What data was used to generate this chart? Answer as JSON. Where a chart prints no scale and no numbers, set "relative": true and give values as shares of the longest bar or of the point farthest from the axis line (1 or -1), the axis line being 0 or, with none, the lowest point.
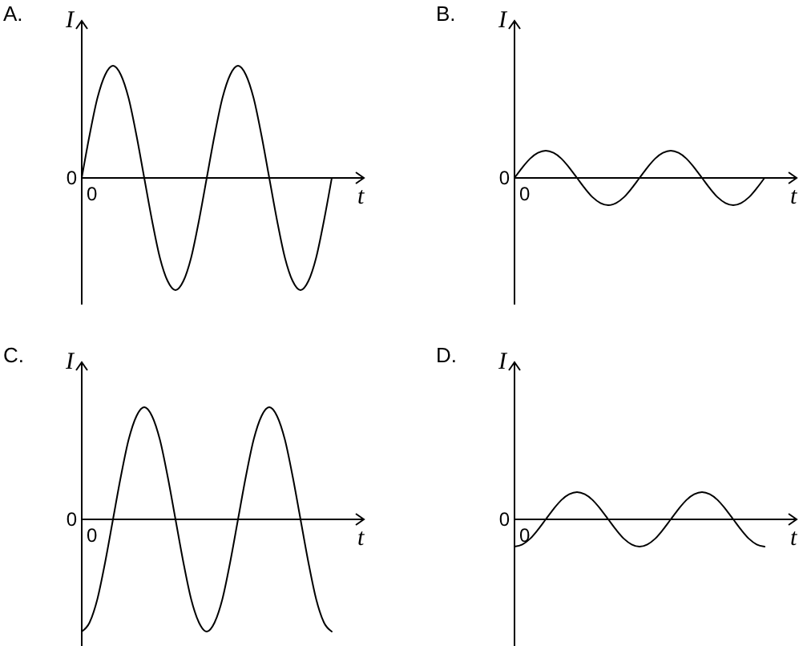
{
  "chart_data": [
    {
      "type": "line",
      "title": "A.",
      "xlabel": "t",
      "ylabel": "I",
      "relative": true,
      "categories": [
        null,
        null,
        null,
        null,
        null,
        null,
        null,
        null,
        null,
        null,
        null,
        null,
        null,
        null,
        null,
        null,
        null,
        null,
        null,
        null,
        null,
        null,
        null,
        null,
        null,
        null,
        null,
        null,
        null,
        null,
        null,
        null,
        null
      ],
      "series": [
        {
          "color": "#000000",
          "values": [
            0,
            0.38,
            0.71,
            0.92,
            1,
            0.92,
            0.71,
            0.38,
            0,
            -0.38,
            -0.71,
            -0.92,
            -1,
            -0.92,
            -0.71,
            -0.38,
            0,
            0.38,
            0.71,
            0.92,
            1,
            0.92,
            0.71,
            0.38,
            0,
            -0.38,
            -0.71,
            -0.92,
            -1,
            -0.92,
            -0.71,
            -0.38,
            0
          ]
        }
      ],
      "annotations": [
        "0",
        "0"
      ]
    },
    {
      "type": "line",
      "title": "B.",
      "xlabel": "t",
      "ylabel": "I",
      "relative": true,
      "categories": [
        null,
        null,
        null,
        null,
        null,
        null,
        null,
        null,
        null,
        null,
        null,
        null,
        null,
        null,
        null,
        null,
        null,
        null,
        null,
        null,
        null,
        null,
        null,
        null,
        null,
        null,
        null,
        null,
        null,
        null,
        null,
        null,
        null
      ],
      "series": [
        {
          "color": "#000000",
          "values": [
            0,
            0.38,
            0.71,
            0.92,
            1,
            0.92,
            0.71,
            0.38,
            0,
            -0.38,
            -0.71,
            -0.92,
            -1,
            -0.92,
            -0.71,
            -0.38,
            0,
            0.38,
            0.71,
            0.92,
            1,
            0.92,
            0.71,
            0.38,
            0,
            -0.38,
            -0.71,
            -0.92,
            -1,
            -0.92,
            -0.71,
            -0.38,
            0
          ]
        }
      ],
      "annotations": [
        "0",
        "0"
      ]
    },
    {
      "type": "line",
      "title": "C.",
      "xlabel": "t",
      "ylabel": "I",
      "relative": true,
      "categories": [
        null,
        null,
        null,
        null,
        null,
        null,
        null,
        null,
        null,
        null,
        null,
        null,
        null,
        null,
        null,
        null,
        null,
        null,
        null,
        null,
        null,
        null,
        null,
        null,
        null,
        null,
        null,
        null,
        null,
        null,
        null,
        null,
        null
      ],
      "series": [
        {
          "color": "#000000",
          "values": [
            -1,
            -0.92,
            -0.71,
            -0.38,
            0,
            0.38,
            0.71,
            0.92,
            1,
            0.92,
            0.71,
            0.38,
            0,
            -0.38,
            -0.71,
            -0.92,
            -1,
            -0.92,
            -0.71,
            -0.38,
            0,
            0.38,
            0.71,
            0.92,
            1,
            0.92,
            0.71,
            0.38,
            0,
            -0.38,
            -0.71,
            -0.92,
            -1
          ]
        }
      ],
      "annotations": [
        "0",
        "0"
      ]
    },
    {
      "type": "line",
      "title": "D.",
      "xlabel": "t",
      "ylabel": "I",
      "relative": true,
      "categories": [
        null,
        null,
        null,
        null,
        null,
        null,
        null,
        null,
        null,
        null,
        null,
        null,
        null,
        null,
        null,
        null,
        null,
        null,
        null,
        null,
        null,
        null,
        null,
        null,
        null,
        null,
        null,
        null,
        null,
        null,
        null,
        null,
        null
      ],
      "series": [
        {
          "color": "#000000",
          "values": [
            -1,
            -0.92,
            -0.71,
            -0.38,
            0,
            0.38,
            0.71,
            0.92,
            1,
            0.92,
            0.71,
            0.38,
            0,
            -0.38,
            -0.71,
            -0.92,
            -1,
            -0.92,
            -0.71,
            -0.38,
            0,
            0.38,
            0.71,
            0.92,
            1,
            0.92,
            0.71,
            0.38,
            0,
            -0.38,
            -0.71,
            -0.92,
            -1
          ]
        }
      ],
      "annotations": [
        "0",
        "0"
      ]
    }
  ]
}
